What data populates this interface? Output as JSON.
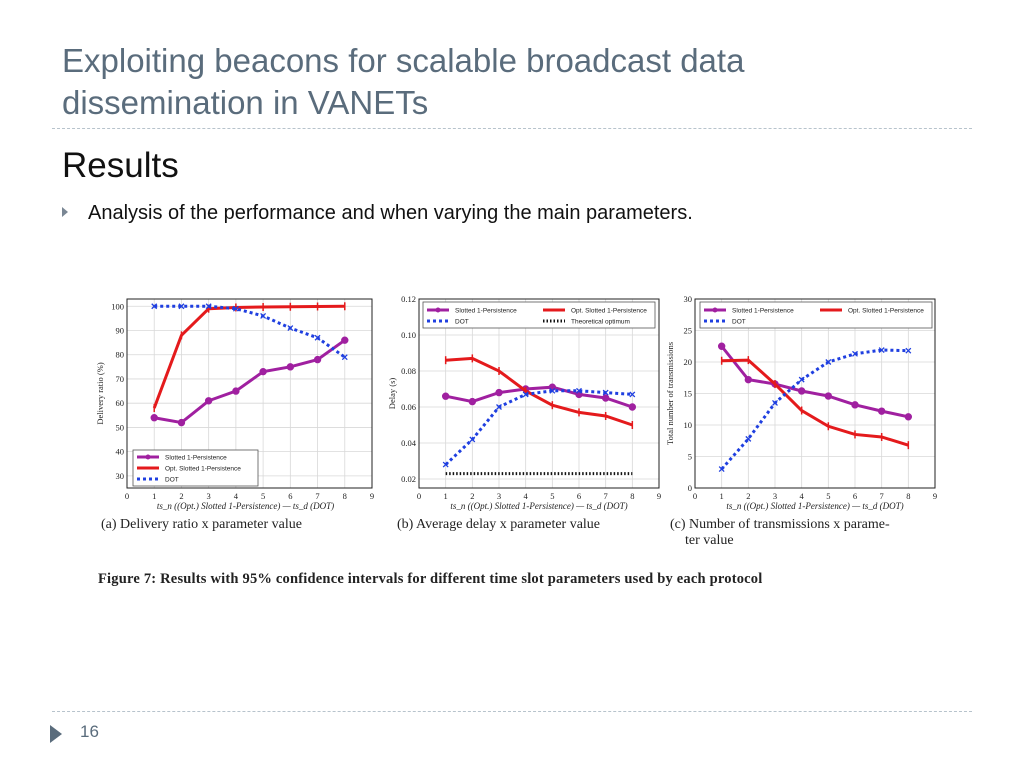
{
  "slide": {
    "title_line1": "Exploiting beacons for scalable broadcast data",
    "title_line2": "dissemination in VANETs",
    "heading": "Results",
    "bullet": "Analysis of the performance and when varying the main parameters.",
    "page_number": "16"
  },
  "figure": {
    "caption": "Figure 7: Results with 95% confidence intervals for different time slot parameters used by each protocol",
    "xlabel": "ts_n ((Opt.) Slotted 1-Persistence) — ts_d (DOT)"
  },
  "chart_data": [
    {
      "type": "line",
      "caption": "(a) Delivery ratio x parameter value",
      "ylabel": "Delivery ratio (%)",
      "xlim": [
        0,
        9
      ],
      "ylim": [
        25,
        103
      ],
      "xticks": [
        "0",
        "1",
        "2",
        "3",
        "4",
        "5",
        "6",
        "7",
        "8",
        "9"
      ],
      "yticks": [
        "30",
        "40",
        "50",
        "60",
        "70",
        "80",
        "90",
        "100"
      ],
      "ytick_values": [
        30,
        40,
        50,
        60,
        70,
        80,
        90,
        100
      ],
      "legend_position": "bottom-right",
      "x": [
        1,
        2,
        3,
        4,
        5,
        6,
        7,
        8
      ],
      "series": [
        {
          "name": "Slotted 1-Persistence",
          "color": "#a020a0",
          "style": "solid",
          "marker": "circle",
          "values": [
            54,
            52,
            61,
            65,
            73,
            75,
            78,
            86
          ]
        },
        {
          "name": "Opt. Slotted 1-Persistence",
          "color": "#e41a1c",
          "style": "solid",
          "marker": "none",
          "values": [
            58,
            88,
            99,
            99.5,
            99.7,
            99.8,
            99.9,
            100
          ]
        },
        {
          "name": "DOT",
          "color": "#1f3fe0",
          "style": "dotted",
          "marker": "x",
          "values": [
            100,
            100,
            100,
            99,
            96,
            91,
            87,
            79
          ]
        }
      ]
    },
    {
      "type": "line",
      "caption": "(b) Average delay x parameter value",
      "ylabel": "Delay (s)",
      "xlim": [
        0,
        9
      ],
      "ylim": [
        0.015,
        0.12
      ],
      "xticks": [
        "0",
        "1",
        "2",
        "3",
        "4",
        "5",
        "6",
        "7",
        "8",
        "9"
      ],
      "yticks": [
        "0.02",
        "0.04",
        "0.06",
        "0.08",
        "0.10",
        "0.12"
      ],
      "ytick_values": [
        0.02,
        0.04,
        0.06,
        0.08,
        0.1,
        0.12
      ],
      "legend_position": "top",
      "x": [
        1,
        2,
        3,
        4,
        5,
        6,
        7,
        8
      ],
      "series": [
        {
          "name": "Slotted 1-Persistence",
          "color": "#a020a0",
          "style": "solid",
          "marker": "circle",
          "values": [
            0.066,
            0.063,
            0.068,
            0.07,
            0.071,
            0.067,
            0.065,
            0.06
          ]
        },
        {
          "name": "Opt. Slotted 1-Persistence",
          "color": "#e41a1c",
          "style": "solid",
          "marker": "none",
          "values": [
            0.086,
            0.087,
            0.08,
            0.069,
            0.061,
            0.057,
            0.055,
            0.05
          ]
        },
        {
          "name": "DOT",
          "color": "#1f3fe0",
          "style": "dotted",
          "marker": "x",
          "values": [
            0.028,
            0.042,
            0.06,
            0.067,
            0.069,
            0.069,
            0.068,
            0.067
          ]
        },
        {
          "name": "Theoretical optimum",
          "color": "#111111",
          "style": "dotted",
          "marker": "none",
          "values": [
            0.023,
            0.023,
            0.023,
            0.023,
            0.023,
            0.023,
            0.023,
            0.023
          ]
        }
      ]
    },
    {
      "type": "line",
      "caption_line1": "(c) Number of transmissions x parame-",
      "caption_line2": "ter value",
      "ylabel": "Total number of transmissions",
      "xlim": [
        0,
        9
      ],
      "ylim": [
        0,
        30
      ],
      "xticks": [
        "0",
        "1",
        "2",
        "3",
        "4",
        "5",
        "6",
        "7",
        "8",
        "9"
      ],
      "yticks": [
        "0",
        "5",
        "10",
        "15",
        "20",
        "25",
        "30"
      ],
      "ytick_values": [
        0,
        5,
        10,
        15,
        20,
        25,
        30
      ],
      "legend_position": "top",
      "x": [
        1,
        2,
        3,
        4,
        5,
        6,
        7,
        8
      ],
      "series": [
        {
          "name": "Slotted 1-Persistence",
          "color": "#a020a0",
          "style": "solid",
          "marker": "circle",
          "values": [
            22.5,
            17.2,
            16.5,
            15.4,
            14.6,
            13.2,
            12.2,
            11.3
          ]
        },
        {
          "name": "Opt. Slotted 1-Persistence",
          "color": "#e41a1c",
          "style": "solid",
          "marker": "none",
          "values": [
            20.2,
            20.3,
            16.5,
            12.3,
            9.8,
            8.5,
            8.1,
            6.8
          ]
        },
        {
          "name": "DOT",
          "color": "#1f3fe0",
          "style": "dotted",
          "marker": "x",
          "values": [
            3,
            7.8,
            13.5,
            17.2,
            20,
            21.3,
            21.9,
            21.8
          ]
        }
      ]
    }
  ]
}
